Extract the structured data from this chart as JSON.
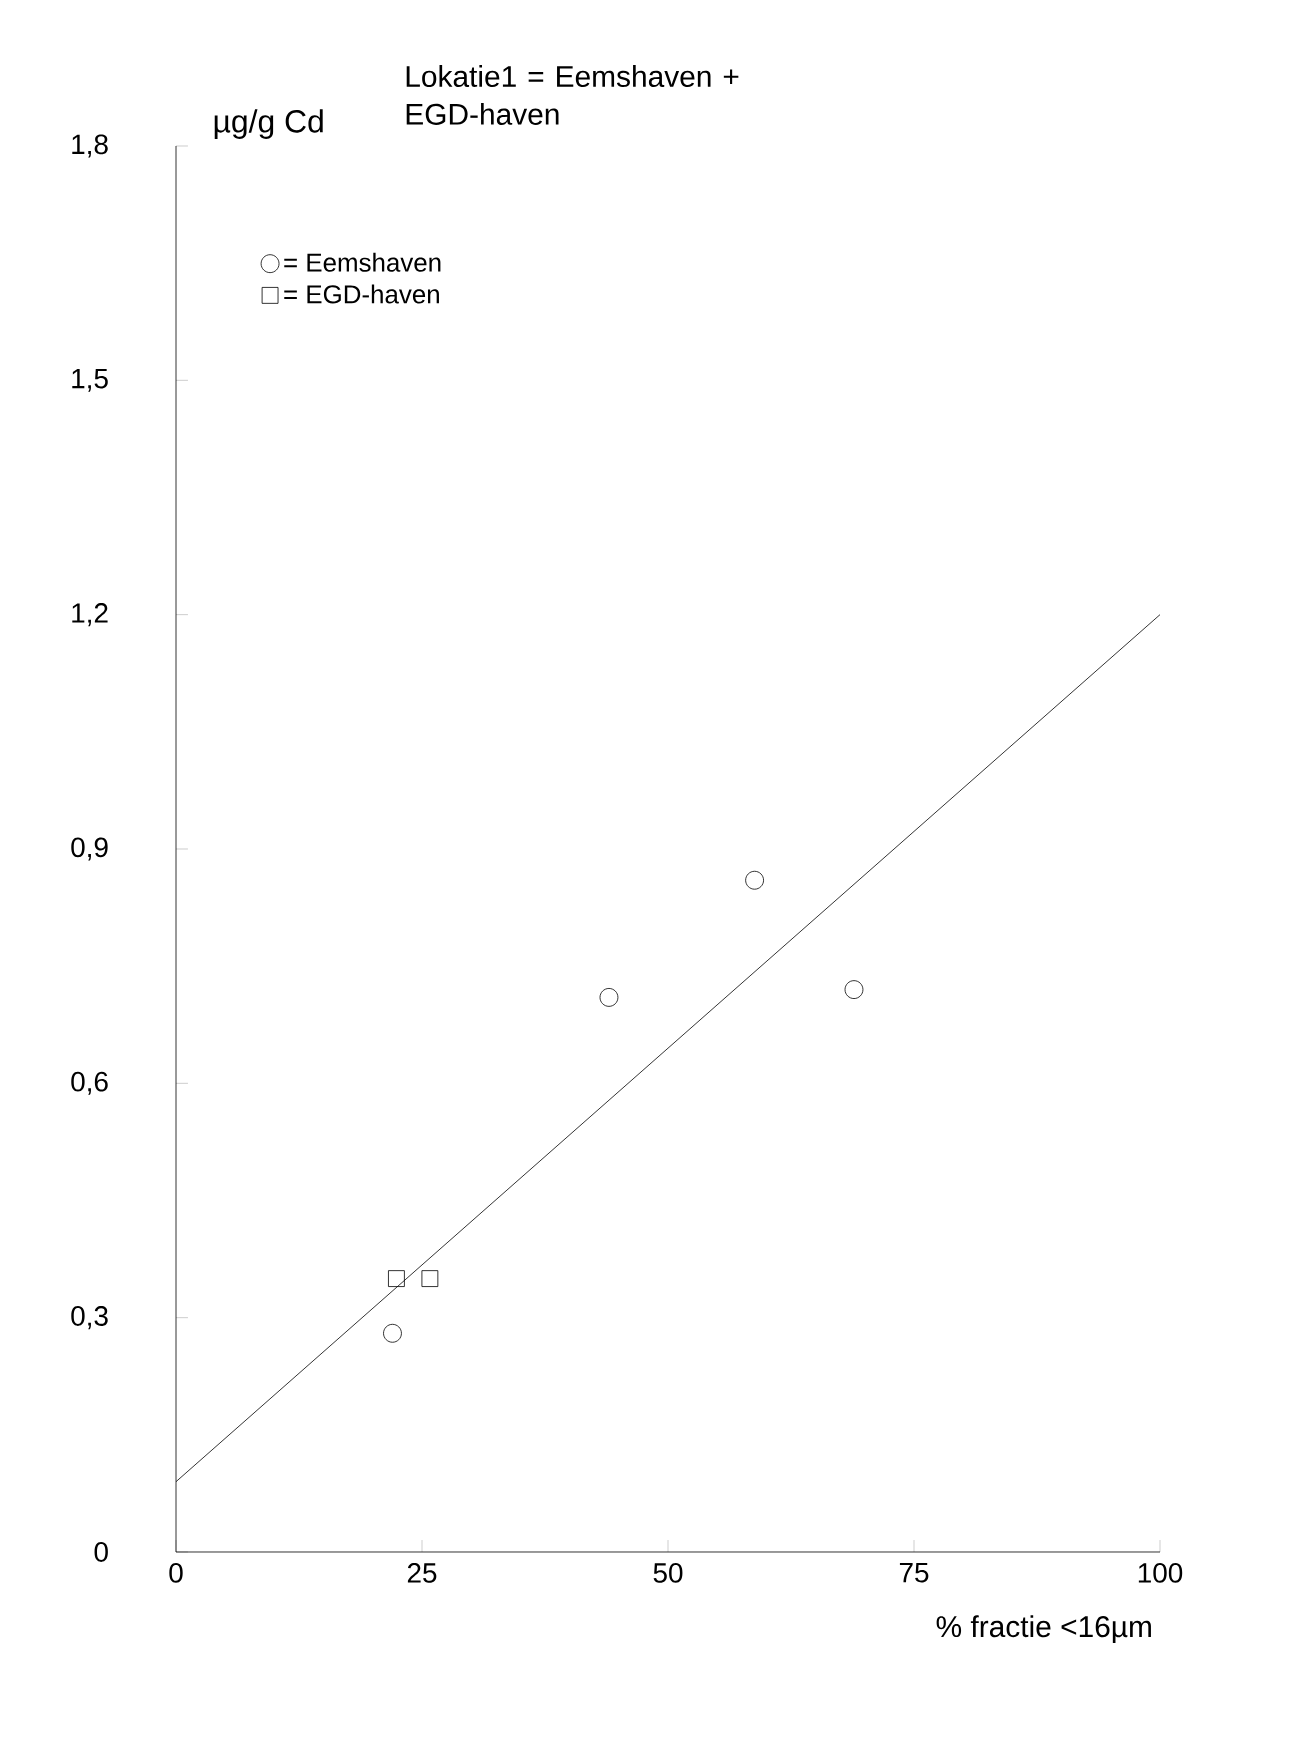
{
  "chart_data": {
    "type": "scatter",
    "title": "Lokatie1 = Eemshaven + EGD-haven",
    "ylabel": "µg/g Cd",
    "xlabel": "% fractie <16µm",
    "series": [
      {
        "name": "= Eemshaven",
        "color": "#000000",
        "marker": "circle",
        "x": [
          22,
          44,
          58.8,
          68.9
        ],
        "values": [
          0.28,
          0.71,
          0.86,
          0.72
        ]
      },
      {
        "name": "= EGD-haven",
        "color": "#000000",
        "marker": "square",
        "x": [
          22.4,
          25.8
        ],
        "values": [
          0.35,
          0.35
        ]
      },
      {
        "type": "line",
        "color": "#000000",
        "marker": "none",
        "x": [
          0,
          100
        ],
        "values": [
          0.09,
          1.2
        ]
      }
    ],
    "xlim": [
      0,
      100
    ],
    "ylim": [
      0,
      1.8
    ],
    "xticks": [
      0,
      25,
      50,
      75,
      100
    ],
    "yticks": [
      {
        "value": 0,
        "label": "0"
      },
      {
        "value": 0.3,
        "label": "0,3"
      },
      {
        "value": 0.6,
        "label": "0,6"
      },
      {
        "value": 0.9,
        "label": "0,9"
      },
      {
        "value": 1.2,
        "label": "1,2"
      },
      {
        "value": 1.5,
        "label": "1,5"
      },
      {
        "value": 1.8,
        "label": "1,8"
      }
    ],
    "grid": false,
    "legend": "top left"
  }
}
